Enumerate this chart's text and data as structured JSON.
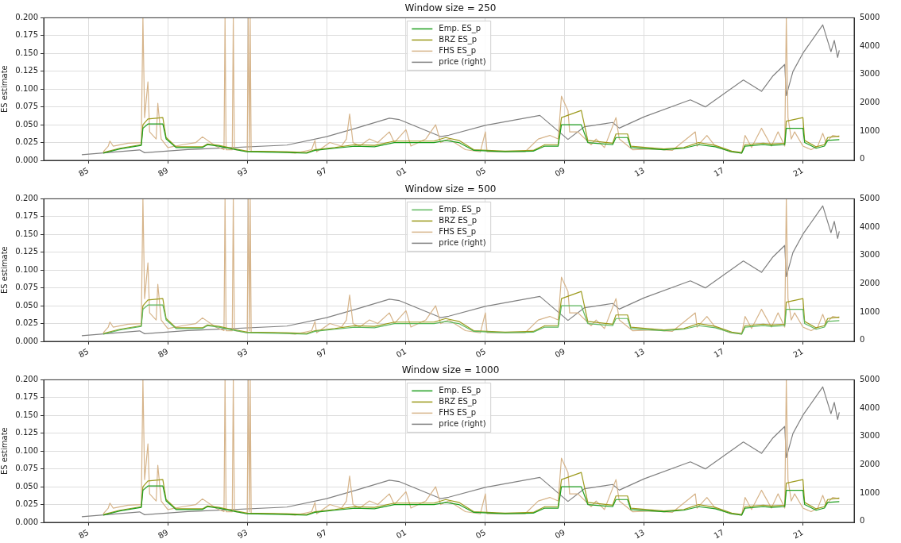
{
  "chart_data": [
    {
      "type": "line",
      "title": "Window size = 250",
      "ylabel": "ES estimate",
      "legend": "top",
      "grid": true,
      "xlim": [
        "1982-10",
        "2023-08"
      ],
      "xticks": [
        {
          "value": "1985-01-01",
          "label": "85"
        },
        {
          "value": "1989-01-01",
          "label": "89"
        },
        {
          "value": "1993-01-01",
          "label": "93"
        },
        {
          "value": "1997-01-01",
          "label": "97"
        },
        {
          "value": "2001-01-01",
          "label": "01"
        },
        {
          "value": "2005-01-01",
          "label": "05"
        },
        {
          "value": "2009-01-01",
          "label": "09"
        },
        {
          "value": "2013-01-01",
          "label": "13"
        },
        {
          "value": "2017-01-01",
          "label": "17"
        },
        {
          "value": "2021-01-01",
          "label": "21"
        }
      ],
      "ylim": [
        0,
        0.2
      ],
      "yticks": [
        {
          "value": 0,
          "label": "0.000"
        },
        {
          "value": 0.025,
          "label": "0.025"
        },
        {
          "value": 0.05,
          "label": "0.050"
        },
        {
          "value": 0.075,
          "label": "0.075"
        },
        {
          "value": 0.1,
          "label": "0.100"
        },
        {
          "value": 0.125,
          "label": "0.125"
        },
        {
          "value": 0.15,
          "label": "0.150"
        },
        {
          "value": 0.175,
          "label": "0.175"
        },
        {
          "value": 0.2,
          "label": "0.200"
        }
      ],
      "y2lim": [
        -40,
        5000
      ],
      "y2ticks": [
        0,
        1000,
        2000,
        3000,
        4000,
        5000
      ],
      "series": [
        {
          "name": "Emp. ES_p",
          "color": "#1f9e1f",
          "x": [
            "1985-10",
            "1986-08",
            "1987-09",
            "1987-10",
            "1988-01",
            "1988-10",
            "1988-12",
            "1989-06",
            "1990-10",
            "1991-01",
            "1991-08",
            "1992-04",
            "1993-01",
            "1995-01",
            "1996-01",
            "1996-06",
            "1997-06",
            "1998-06",
            "1999-06",
            "2000-06",
            "2002-06",
            "2003-01",
            "2003-09",
            "2004-06",
            "2006-01",
            "2007-06",
            "2008-01",
            "2008-09",
            "2008-11",
            "2009-11",
            "2010-03",
            "2011-06",
            "2011-08",
            "2012-03",
            "2012-05",
            "2014-01",
            "2015-01",
            "2015-10",
            "2016-08",
            "2017-06",
            "2017-12",
            "2018-02",
            "2019-01",
            "2019-06",
            "2020-02",
            "2020-03",
            "2021-01",
            "2021-02",
            "2021-09",
            "2022-02",
            "2022-04",
            "2022-11"
          ],
          "values": [
            0.01,
            0.016,
            0.021,
            0.045,
            0.051,
            0.051,
            0.03,
            0.018,
            0.018,
            0.022,
            0.02,
            0.016,
            0.012,
            0.011,
            0.01,
            0.014,
            0.017,
            0.02,
            0.019,
            0.025,
            0.025,
            0.028,
            0.025,
            0.014,
            0.012,
            0.013,
            0.02,
            0.02,
            0.05,
            0.05,
            0.025,
            0.022,
            0.032,
            0.032,
            0.018,
            0.015,
            0.017,
            0.022,
            0.019,
            0.012,
            0.01,
            0.02,
            0.022,
            0.021,
            0.022,
            0.045,
            0.045,
            0.025,
            0.017,
            0.02,
            0.028,
            0.029
          ]
        },
        {
          "name": "BRZ ES_p",
          "color": "#9c9a1c",
          "x": [
            "1985-10",
            "1986-08",
            "1987-09",
            "1987-10",
            "1988-01",
            "1988-10",
            "1988-12",
            "1989-06",
            "1990-10",
            "1991-01",
            "1991-08",
            "1992-04",
            "1993-01",
            "1995-01",
            "1996-01",
            "1996-06",
            "1997-06",
            "1998-06",
            "1999-06",
            "2000-06",
            "2002-06",
            "2003-01",
            "2003-09",
            "2004-06",
            "2006-01",
            "2007-06",
            "2008-01",
            "2008-09",
            "2008-11",
            "2009-11",
            "2010-03",
            "2011-06",
            "2011-08",
            "2012-03",
            "2012-05",
            "2014-01",
            "2015-01",
            "2015-10",
            "2016-08",
            "2017-06",
            "2017-12",
            "2018-02",
            "2019-01",
            "2019-06",
            "2020-02",
            "2020-03",
            "2021-01",
            "2021-02",
            "2021-09",
            "2022-02",
            "2022-04",
            "2022-11"
          ],
          "values": [
            0.011,
            0.017,
            0.022,
            0.05,
            0.058,
            0.06,
            0.032,
            0.019,
            0.019,
            0.023,
            0.021,
            0.017,
            0.013,
            0.012,
            0.011,
            0.015,
            0.018,
            0.022,
            0.021,
            0.027,
            0.027,
            0.032,
            0.028,
            0.015,
            0.013,
            0.014,
            0.022,
            0.022,
            0.06,
            0.07,
            0.028,
            0.024,
            0.037,
            0.037,
            0.02,
            0.016,
            0.018,
            0.025,
            0.021,
            0.013,
            0.011,
            0.022,
            0.024,
            0.023,
            0.024,
            0.055,
            0.06,
            0.028,
            0.019,
            0.022,
            0.032,
            0.034
          ]
        },
        {
          "name": "FHS ES_p",
          "color": "#d6b48a",
          "x": [
            "1985-10",
            "1986-01",
            "1986-02",
            "1986-04",
            "1987-01",
            "1987-09",
            "1987-10",
            "1987-11",
            "1988-01",
            "1988-02",
            "1988-06",
            "1988-07",
            "1988-09",
            "1989-01",
            "1989-10",
            "1990-06",
            "1990-10",
            "1991-06",
            "1991-11-01",
            "1991-11-20",
            "1991-12-10",
            "1992-04-01",
            "1992-04-20",
            "1992-05-10",
            "1993-01-01",
            "1993-01-20",
            "1993-02-10",
            "1993-02-25",
            "1993-03-15",
            "1994-06",
            "1995-06",
            "1996-04",
            "1996-06",
            "1996-07",
            "1997-03",
            "1997-10",
            "1998-01",
            "1998-03",
            "1998-05",
            "1998-09",
            "1999-03",
            "1999-08",
            "2000-03",
            "2000-06",
            "2001-01",
            "2001-04",
            "2002-01",
            "2002-07",
            "2002-10",
            "2003-03",
            "2004-01",
            "2004-10",
            "2005-01",
            "2005-02",
            "2007-01",
            "2007-09",
            "2008-04",
            "2008-09",
            "2008-11",
            "2009-03",
            "2009-04",
            "2009-09",
            "2010-05",
            "2010-08",
            "2011-01",
            "2011-08",
            "2011-10",
            "2012-06",
            "2013-06",
            "2014-06",
            "2015-08",
            "2015-09",
            "2016-03",
            "2016-08",
            "2017-05",
            "2017-12",
            "2018-02",
            "2018-06",
            "2018-12",
            "2019-06",
            "2019-10",
            "2020-02",
            "2020-03",
            "2020-04",
            "2020-06",
            "2020-08",
            "2021-01",
            "2021-06",
            "2021-10",
            "2022-01",
            "2022-03",
            "2022-07",
            "2022-11"
          ],
          "values": [
            0.012,
            0.02,
            0.027,
            0.02,
            0.024,
            0.025,
            0.2,
            0.06,
            0.11,
            0.04,
            0.03,
            0.08,
            0.03,
            0.018,
            0.022,
            0.025,
            0.033,
            0.02,
            0.015,
            0.2,
            0.015,
            0.015,
            0.2,
            0.015,
            0.012,
            0.2,
            0.015,
            0.2,
            0.012,
            0.012,
            0.01,
            0.015,
            0.028,
            0.012,
            0.025,
            0.02,
            0.03,
            0.065,
            0.025,
            0.02,
            0.03,
            0.025,
            0.04,
            0.025,
            0.043,
            0.02,
            0.03,
            0.05,
            0.025,
            0.03,
            0.015,
            0.012,
            0.04,
            0.012,
            0.012,
            0.03,
            0.035,
            0.03,
            0.09,
            0.07,
            0.04,
            0.04,
            0.022,
            0.03,
            0.018,
            0.06,
            0.03,
            0.015,
            0.016,
            0.014,
            0.04,
            0.02,
            0.035,
            0.02,
            0.012,
            0.01,
            0.035,
            0.018,
            0.045,
            0.02,
            0.04,
            0.02,
            0.2,
            0.06,
            0.03,
            0.04,
            0.02,
            0.015,
            0.02,
            0.038,
            0.025,
            0.035,
            0.033
          ]
        },
        {
          "name": "price (right)",
          "color": "#808080",
          "axis": "y2",
          "x": [
            "1984-09",
            "1987-08",
            "1987-11",
            "1990-01",
            "1995-01",
            "1997-01",
            "1998-07",
            "2000-03",
            "2000-09",
            "2002-10",
            "2003-03",
            "2005-01",
            "2007-10",
            "2009-03",
            "2010-01",
            "2011-06",
            "2011-10",
            "2013-01",
            "2015-05",
            "2016-02",
            "2018-01",
            "2018-12",
            "2019-07",
            "2020-02",
            "2020-03",
            "2020-07",
            "2021-01",
            "2022-01",
            "2022-06",
            "2022-08",
            "2022-10",
            "2022-11"
          ],
          "values": [
            160,
            330,
            230,
            340,
            500,
            800,
            1100,
            1450,
            1400,
            800,
            850,
            1200,
            1550,
            700,
            1150,
            1300,
            1100,
            1500,
            2100,
            1850,
            2800,
            2400,
            2950,
            3350,
            2250,
            3100,
            3750,
            4750,
            3800,
            4200,
            3600,
            3850
          ]
        }
      ]
    },
    {
      "type": "line",
      "title": "Window size = 500",
      "ylabel": "ES estimate",
      "legend": "top",
      "grid": true,
      "xlim": [
        "1982-10",
        "2023-08"
      ],
      "xticks": [
        {
          "value": "1985-01-01",
          "label": "85"
        },
        {
          "value": "1989-01-01",
          "label": "89"
        },
        {
          "value": "1993-01-01",
          "label": "93"
        },
        {
          "value": "1997-01-01",
          "label": "97"
        },
        {
          "value": "2001-01-01",
          "label": "01"
        },
        {
          "value": "2005-01-01",
          "label": "05"
        },
        {
          "value": "2009-01-01",
          "label": "09"
        },
        {
          "value": "2013-01-01",
          "label": "13"
        },
        {
          "value": "2017-01-01",
          "label": "17"
        },
        {
          "value": "2021-01-01",
          "label": "21"
        }
      ],
      "ylim": [
        0,
        0.2
      ],
      "yticks": [
        {
          "value": 0,
          "label": "0.000"
        },
        {
          "value": 0.025,
          "label": "0.025"
        },
        {
          "value": 0.05,
          "label": "0.050"
        },
        {
          "value": 0.075,
          "label": "0.075"
        },
        {
          "value": 0.1,
          "label": "0.100"
        },
        {
          "value": 0.125,
          "label": "0.125"
        },
        {
          "value": 0.15,
          "label": "0.150"
        },
        {
          "value": 0.175,
          "label": "0.175"
        },
        {
          "value": 0.2,
          "label": "0.200"
        }
      ],
      "y2lim": [
        -40,
        5000
      ],
      "y2ticks": [
        0,
        1000,
        2000,
        3000,
        4000,
        5000
      ],
      "series": [
        {
          "name": "Emp. ES_p",
          "color": "#5cb85c",
          "x": [
            "1985-10",
            "1986-08",
            "1987-09",
            "1987-10",
            "1988-01",
            "1988-10",
            "1988-12",
            "1989-06",
            "1990-10",
            "1991-01",
            "1991-08",
            "1992-04",
            "1993-01",
            "1995-01",
            "1996-01",
            "1996-06",
            "1997-06",
            "1998-06",
            "1999-06",
            "2000-06",
            "2002-06",
            "2003-01",
            "2003-09",
            "2004-06",
            "2006-01",
            "2007-06",
            "2008-01",
            "2008-09",
            "2008-11",
            "2009-11",
            "2010-03",
            "2011-06",
            "2011-08",
            "2012-03",
            "2012-05",
            "2014-01",
            "2015-01",
            "2015-10",
            "2016-08",
            "2017-06",
            "2017-12",
            "2018-02",
            "2019-01",
            "2019-06",
            "2020-02",
            "2020-03",
            "2021-01",
            "2021-02",
            "2021-09",
            "2022-02",
            "2022-04",
            "2022-11"
          ],
          "values": [
            0.01,
            0.016,
            0.021,
            0.045,
            0.051,
            0.051,
            0.03,
            0.018,
            0.018,
            0.022,
            0.02,
            0.016,
            0.012,
            0.011,
            0.01,
            0.014,
            0.017,
            0.02,
            0.019,
            0.025,
            0.025,
            0.028,
            0.025,
            0.014,
            0.012,
            0.013,
            0.02,
            0.02,
            0.05,
            0.05,
            0.025,
            0.022,
            0.032,
            0.032,
            0.018,
            0.015,
            0.017,
            0.022,
            0.019,
            0.012,
            0.01,
            0.02,
            0.022,
            0.021,
            0.022,
            0.045,
            0.045,
            0.025,
            0.017,
            0.02,
            0.028,
            0.029
          ]
        },
        {
          "name": "BRZ ES_p",
          "color": "#9c9a1c",
          "x": [
            "1985-10",
            "1986-08",
            "1987-09",
            "1987-10",
            "1988-01",
            "1988-10",
            "1988-12",
            "1989-06",
            "1990-10",
            "1991-01",
            "1991-08",
            "1992-04",
            "1993-01",
            "1995-01",
            "1996-01",
            "1996-06",
            "1997-06",
            "1998-06",
            "1999-06",
            "2000-06",
            "2002-06",
            "2003-01",
            "2003-09",
            "2004-06",
            "2006-01",
            "2007-06",
            "2008-01",
            "2008-09",
            "2008-11",
            "2009-11",
            "2010-03",
            "2011-06",
            "2011-08",
            "2012-03",
            "2012-05",
            "2014-01",
            "2015-01",
            "2015-10",
            "2016-08",
            "2017-06",
            "2017-12",
            "2018-02",
            "2019-01",
            "2019-06",
            "2020-02",
            "2020-03",
            "2021-01",
            "2021-02",
            "2021-09",
            "2022-02",
            "2022-04",
            "2022-11"
          ],
          "values": [
            0.011,
            0.017,
            0.022,
            0.05,
            0.058,
            0.06,
            0.032,
            0.019,
            0.019,
            0.023,
            0.021,
            0.017,
            0.013,
            0.012,
            0.011,
            0.015,
            0.018,
            0.022,
            0.021,
            0.027,
            0.027,
            0.032,
            0.028,
            0.015,
            0.013,
            0.014,
            0.022,
            0.022,
            0.06,
            0.07,
            0.028,
            0.024,
            0.037,
            0.037,
            0.02,
            0.016,
            0.018,
            0.025,
            0.021,
            0.013,
            0.011,
            0.022,
            0.024,
            0.023,
            0.024,
            0.055,
            0.06,
            0.028,
            0.019,
            0.022,
            0.032,
            0.034
          ]
        },
        {
          "name": "FHS ES_p",
          "color": "#d6b48a",
          "x": [
            "1985-10",
            "1986-01",
            "1986-02",
            "1986-04",
            "1987-01",
            "1987-09",
            "1987-10",
            "1987-11",
            "1988-01",
            "1988-02",
            "1988-06",
            "1988-07",
            "1988-09",
            "1989-01",
            "1989-10",
            "1990-06",
            "1990-10",
            "1991-06",
            "1991-11-01",
            "1991-11-20",
            "1991-12-10",
            "1992-04-01",
            "1992-04-20",
            "1992-05-10",
            "1993-01-01",
            "1993-01-20",
            "1993-02-10",
            "1993-02-25",
            "1993-03-15",
            "1994-06",
            "1995-06",
            "1996-04",
            "1996-06",
            "1996-07",
            "1997-03",
            "1997-10",
            "1998-01",
            "1998-03",
            "1998-05",
            "1998-09",
            "1999-03",
            "1999-08",
            "2000-03",
            "2000-06",
            "2001-01",
            "2001-04",
            "2002-01",
            "2002-07",
            "2002-10",
            "2003-03",
            "2004-01",
            "2004-10",
            "2005-01",
            "2005-02",
            "2007-01",
            "2007-09",
            "2008-04",
            "2008-09",
            "2008-11",
            "2009-03",
            "2009-04",
            "2009-09",
            "2010-05",
            "2010-08",
            "2011-01",
            "2011-08",
            "2011-10",
            "2012-06",
            "2013-06",
            "2014-06",
            "2015-08",
            "2015-09",
            "2016-03",
            "2016-08",
            "2017-05",
            "2017-12",
            "2018-02",
            "2018-06",
            "2018-12",
            "2019-06",
            "2019-10",
            "2020-02",
            "2020-03",
            "2020-04",
            "2020-06",
            "2020-08",
            "2021-01",
            "2021-06",
            "2021-10",
            "2022-01",
            "2022-03",
            "2022-07",
            "2022-11"
          ],
          "values": [
            0.012,
            0.02,
            0.027,
            0.02,
            0.024,
            0.025,
            0.2,
            0.06,
            0.11,
            0.04,
            0.03,
            0.08,
            0.03,
            0.018,
            0.022,
            0.025,
            0.033,
            0.02,
            0.015,
            0.2,
            0.015,
            0.015,
            0.2,
            0.015,
            0.012,
            0.2,
            0.015,
            0.2,
            0.012,
            0.012,
            0.01,
            0.015,
            0.028,
            0.012,
            0.025,
            0.02,
            0.03,
            0.065,
            0.025,
            0.02,
            0.03,
            0.025,
            0.04,
            0.025,
            0.043,
            0.02,
            0.03,
            0.05,
            0.025,
            0.03,
            0.015,
            0.012,
            0.04,
            0.012,
            0.012,
            0.03,
            0.035,
            0.03,
            0.09,
            0.07,
            0.04,
            0.04,
            0.022,
            0.03,
            0.018,
            0.06,
            0.03,
            0.015,
            0.016,
            0.014,
            0.04,
            0.02,
            0.035,
            0.02,
            0.012,
            0.01,
            0.035,
            0.018,
            0.045,
            0.02,
            0.04,
            0.02,
            0.2,
            0.06,
            0.03,
            0.04,
            0.02,
            0.015,
            0.02,
            0.038,
            0.025,
            0.035,
            0.033
          ]
        },
        {
          "name": "price (right)",
          "color": "#808080",
          "axis": "y2",
          "x": [
            "1984-09",
            "1987-08",
            "1987-11",
            "1990-01",
            "1995-01",
            "1997-01",
            "1998-07",
            "2000-03",
            "2000-09",
            "2002-10",
            "2003-03",
            "2005-01",
            "2007-10",
            "2009-03",
            "2010-01",
            "2011-06",
            "2011-10",
            "2013-01",
            "2015-05",
            "2016-02",
            "2018-01",
            "2018-12",
            "2019-07",
            "2020-02",
            "2020-03",
            "2020-07",
            "2021-01",
            "2022-01",
            "2022-06",
            "2022-08",
            "2022-10",
            "2022-11"
          ],
          "values": [
            160,
            330,
            230,
            340,
            500,
            800,
            1100,
            1450,
            1400,
            800,
            850,
            1200,
            1550,
            700,
            1150,
            1300,
            1100,
            1500,
            2100,
            1850,
            2800,
            2400,
            2950,
            3350,
            2250,
            3100,
            3750,
            4750,
            3800,
            4200,
            3600,
            3850
          ]
        }
      ]
    },
    {
      "type": "line",
      "title": "Window size = 1000",
      "ylabel": "ES estimate",
      "legend": "top",
      "grid": true,
      "xlim": [
        "1982-10",
        "2023-08"
      ],
      "xticks": [
        {
          "value": "1985-01-01",
          "label": "85"
        },
        {
          "value": "1989-01-01",
          "label": "89"
        },
        {
          "value": "1993-01-01",
          "label": "93"
        },
        {
          "value": "1997-01-01",
          "label": "97"
        },
        {
          "value": "2001-01-01",
          "label": "01"
        },
        {
          "value": "2005-01-01",
          "label": "05"
        },
        {
          "value": "2009-01-01",
          "label": "09"
        },
        {
          "value": "2013-01-01",
          "label": "13"
        },
        {
          "value": "2017-01-01",
          "label": "17"
        },
        {
          "value": "2021-01-01",
          "label": "21"
        }
      ],
      "ylim": [
        0,
        0.2
      ],
      "yticks": [
        {
          "value": 0,
          "label": "0.000"
        },
        {
          "value": 0.025,
          "label": "0.025"
        },
        {
          "value": 0.05,
          "label": "0.050"
        },
        {
          "value": 0.075,
          "label": "0.075"
        },
        {
          "value": 0.1,
          "label": "0.100"
        },
        {
          "value": 0.125,
          "label": "0.125"
        },
        {
          "value": 0.15,
          "label": "0.150"
        },
        {
          "value": 0.175,
          "label": "0.175"
        },
        {
          "value": 0.2,
          "label": "0.200"
        }
      ],
      "y2lim": [
        -40,
        5000
      ],
      "y2ticks": [
        0,
        1000,
        2000,
        3000,
        4000,
        5000
      ],
      "series": [
        {
          "name": "Emp. ES_p",
          "color": "#1f9e1f",
          "x": [
            "1985-10",
            "1986-08",
            "1987-09",
            "1987-10",
            "1988-01",
            "1988-10",
            "1988-12",
            "1989-06",
            "1990-10",
            "1991-01",
            "1991-08",
            "1992-04",
            "1993-01",
            "1995-01",
            "1996-01",
            "1996-06",
            "1997-06",
            "1998-06",
            "1999-06",
            "2000-06",
            "2002-06",
            "2003-01",
            "2003-09",
            "2004-06",
            "2006-01",
            "2007-06",
            "2008-01",
            "2008-09",
            "2008-11",
            "2009-11",
            "2010-03",
            "2011-06",
            "2011-08",
            "2012-03",
            "2012-05",
            "2014-01",
            "2015-01",
            "2015-10",
            "2016-08",
            "2017-06",
            "2017-12",
            "2018-02",
            "2019-01",
            "2019-06",
            "2020-02",
            "2020-03",
            "2021-01",
            "2021-02",
            "2021-09",
            "2022-02",
            "2022-04",
            "2022-11"
          ],
          "values": [
            0.01,
            0.016,
            0.021,
            0.045,
            0.051,
            0.051,
            0.03,
            0.018,
            0.018,
            0.022,
            0.02,
            0.016,
            0.012,
            0.011,
            0.01,
            0.014,
            0.017,
            0.02,
            0.019,
            0.025,
            0.025,
            0.028,
            0.025,
            0.014,
            0.012,
            0.013,
            0.02,
            0.02,
            0.05,
            0.05,
            0.025,
            0.022,
            0.032,
            0.032,
            0.018,
            0.015,
            0.017,
            0.022,
            0.019,
            0.012,
            0.01,
            0.02,
            0.022,
            0.021,
            0.022,
            0.045,
            0.045,
            0.025,
            0.017,
            0.02,
            0.028,
            0.029
          ]
        },
        {
          "name": "BRZ ES_p",
          "color": "#9c9a1c",
          "x": [
            "1985-10",
            "1986-08",
            "1987-09",
            "1987-10",
            "1988-01",
            "1988-10",
            "1988-12",
            "1989-06",
            "1990-10",
            "1991-01",
            "1991-08",
            "1992-04",
            "1993-01",
            "1995-01",
            "1996-01",
            "1996-06",
            "1997-06",
            "1998-06",
            "1999-06",
            "2000-06",
            "2002-06",
            "2003-01",
            "2003-09",
            "2004-06",
            "2006-01",
            "2007-06",
            "2008-01",
            "2008-09",
            "2008-11",
            "2009-11",
            "2010-03",
            "2011-06",
            "2011-08",
            "2012-03",
            "2012-05",
            "2014-01",
            "2015-01",
            "2015-10",
            "2016-08",
            "2017-06",
            "2017-12",
            "2018-02",
            "2019-01",
            "2019-06",
            "2020-02",
            "2020-03",
            "2021-01",
            "2021-02",
            "2021-09",
            "2022-02",
            "2022-04",
            "2022-11"
          ],
          "values": [
            0.011,
            0.017,
            0.022,
            0.05,
            0.058,
            0.06,
            0.032,
            0.019,
            0.019,
            0.023,
            0.021,
            0.017,
            0.013,
            0.012,
            0.011,
            0.015,
            0.018,
            0.022,
            0.021,
            0.027,
            0.027,
            0.032,
            0.028,
            0.015,
            0.013,
            0.014,
            0.022,
            0.022,
            0.06,
            0.07,
            0.028,
            0.024,
            0.037,
            0.037,
            0.02,
            0.016,
            0.018,
            0.025,
            0.021,
            0.013,
            0.011,
            0.022,
            0.024,
            0.023,
            0.024,
            0.055,
            0.06,
            0.028,
            0.019,
            0.022,
            0.032,
            0.034
          ]
        },
        {
          "name": "FHS ES_p",
          "color": "#d6b48a",
          "x": [
            "1985-10",
            "1986-01",
            "1986-02",
            "1986-04",
            "1987-01",
            "1987-09",
            "1987-10",
            "1987-11",
            "1988-01",
            "1988-02",
            "1988-06",
            "1988-07",
            "1988-09",
            "1989-01",
            "1989-10",
            "1990-06",
            "1990-10",
            "1991-06",
            "1991-11-01",
            "1991-11-20",
            "1991-12-10",
            "1992-04-01",
            "1992-04-20",
            "1992-05-10",
            "1993-01-01",
            "1993-01-20",
            "1993-02-10",
            "1993-02-25",
            "1993-03-15",
            "1994-06",
            "1995-06",
            "1996-04",
            "1996-06",
            "1996-07",
            "1997-03",
            "1997-10",
            "1998-01",
            "1998-03",
            "1998-05",
            "1998-09",
            "1999-03",
            "1999-08",
            "2000-03",
            "2000-06",
            "2001-01",
            "2001-04",
            "2002-01",
            "2002-07",
            "2002-10",
            "2003-03",
            "2004-01",
            "2004-10",
            "2005-01",
            "2005-02",
            "2007-01",
            "2007-09",
            "2008-04",
            "2008-09",
            "2008-11",
            "2009-03",
            "2009-04",
            "2009-09",
            "2010-05",
            "2010-08",
            "2011-01",
            "2011-08",
            "2011-10",
            "2012-06",
            "2013-06",
            "2014-06",
            "2015-08",
            "2015-09",
            "2016-03",
            "2016-08",
            "2017-05",
            "2017-12",
            "2018-02",
            "2018-06",
            "2018-12",
            "2019-06",
            "2019-10",
            "2020-02",
            "2020-03",
            "2020-04",
            "2020-06",
            "2020-08",
            "2021-01",
            "2021-06",
            "2021-10",
            "2022-01",
            "2022-03",
            "2022-07",
            "2022-11"
          ],
          "values": [
            0.012,
            0.02,
            0.027,
            0.02,
            0.024,
            0.025,
            0.2,
            0.06,
            0.11,
            0.04,
            0.03,
            0.08,
            0.03,
            0.018,
            0.022,
            0.025,
            0.033,
            0.02,
            0.015,
            0.2,
            0.015,
            0.015,
            0.2,
            0.015,
            0.012,
            0.2,
            0.015,
            0.2,
            0.012,
            0.012,
            0.01,
            0.015,
            0.028,
            0.012,
            0.025,
            0.02,
            0.03,
            0.065,
            0.025,
            0.02,
            0.03,
            0.025,
            0.04,
            0.025,
            0.043,
            0.02,
            0.03,
            0.05,
            0.025,
            0.03,
            0.015,
            0.012,
            0.04,
            0.012,
            0.012,
            0.03,
            0.035,
            0.03,
            0.09,
            0.07,
            0.04,
            0.04,
            0.022,
            0.03,
            0.018,
            0.06,
            0.03,
            0.015,
            0.016,
            0.014,
            0.04,
            0.02,
            0.035,
            0.02,
            0.012,
            0.01,
            0.035,
            0.018,
            0.045,
            0.02,
            0.04,
            0.02,
            0.2,
            0.06,
            0.03,
            0.04,
            0.02,
            0.015,
            0.02,
            0.038,
            0.025,
            0.035,
            0.033
          ]
        },
        {
          "name": "price (right)",
          "color": "#808080",
          "axis": "y2",
          "x": [
            "1984-09",
            "1987-08",
            "1987-11",
            "1990-01",
            "1995-01",
            "1997-01",
            "1998-07",
            "2000-03",
            "2000-09",
            "2002-10",
            "2003-03",
            "2005-01",
            "2007-10",
            "2009-03",
            "2010-01",
            "2011-06",
            "2011-10",
            "2013-01",
            "2015-05",
            "2016-02",
            "2018-01",
            "2018-12",
            "2019-07",
            "2020-02",
            "2020-03",
            "2020-07",
            "2021-01",
            "2022-01",
            "2022-06",
            "2022-08",
            "2022-10",
            "2022-11"
          ],
          "values": [
            160,
            330,
            230,
            340,
            500,
            800,
            1100,
            1450,
            1400,
            800,
            850,
            1200,
            1550,
            700,
            1150,
            1300,
            1100,
            1500,
            2100,
            1850,
            2800,
            2400,
            2950,
            3350,
            2250,
            3100,
            3750,
            4750,
            3800,
            4200,
            3600,
            3850
          ]
        }
      ]
    }
  ]
}
